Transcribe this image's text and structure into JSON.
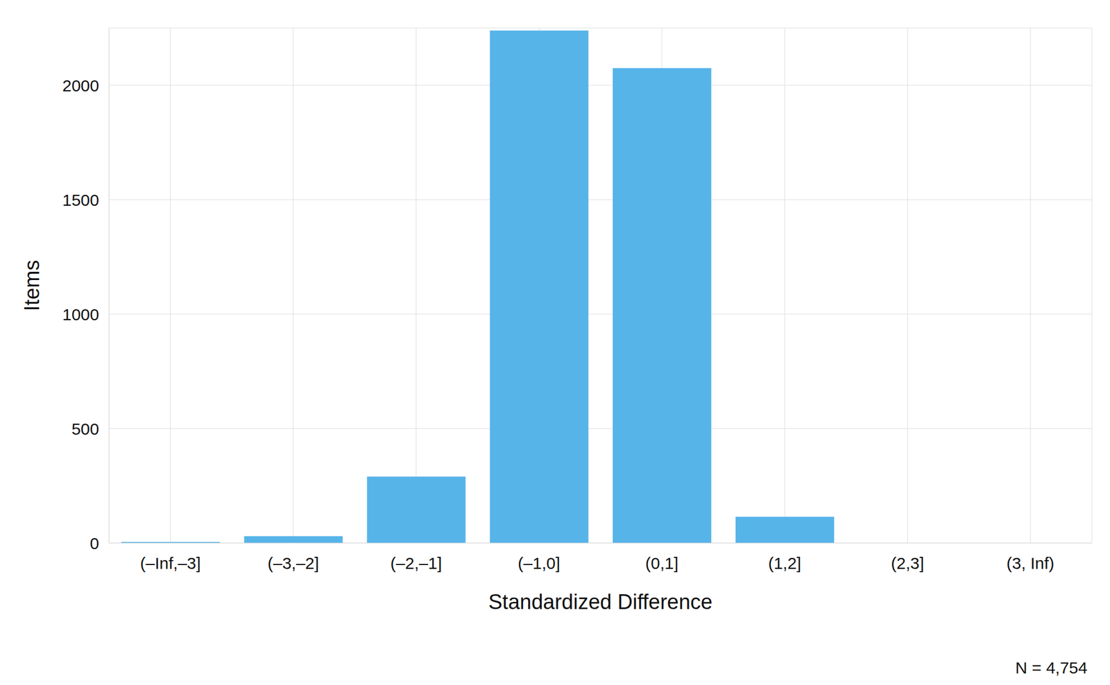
{
  "chart_data": {
    "type": "bar",
    "categories": [
      "(–Inf,–3]",
      "(–3,–2]",
      "(–2,–1]",
      "(–1,0]",
      "(0,1]",
      "(1,2]",
      "(2,3]",
      "(3, Inf)"
    ],
    "values": [
      5,
      30,
      290,
      2239,
      2075,
      115,
      0,
      0
    ],
    "color": "#56b4e9",
    "ylim": [
      0,
      2250
    ],
    "yticks": [
      0,
      500,
      1000,
      1500,
      2000
    ],
    "grid": true,
    "x_label": "Standardized Difference",
    "y_label": "Items",
    "annotation": "N = 4,754"
  }
}
